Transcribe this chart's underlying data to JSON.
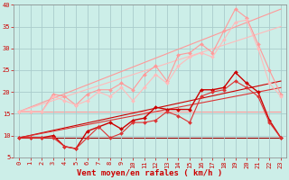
{
  "bg_color": "#cceee8",
  "grid_color": "#aacccc",
  "xlabel": "Vent moyen/en rafales ( km/h )",
  "xlim": [
    -0.5,
    23.5
  ],
  "ylim": [
    5,
    40
  ],
  "yticks": [
    5,
    10,
    15,
    20,
    25,
    30,
    35,
    40
  ],
  "xticks": [
    0,
    1,
    2,
    3,
    4,
    5,
    6,
    7,
    8,
    9,
    10,
    11,
    12,
    13,
    14,
    15,
    16,
    17,
    18,
    19,
    20,
    21,
    22,
    23
  ],
  "series": [
    {
      "x": [
        0,
        1,
        2,
        3,
        4,
        5,
        6,
        7,
        8,
        9,
        10,
        11,
        12,
        13,
        14,
        15,
        16,
        17,
        18,
        19,
        20,
        21,
        22,
        23
      ],
      "y": [
        15.5,
        15.5,
        15.5,
        19.5,
        19.0,
        17.0,
        19.5,
        20.5,
        20.5,
        22.0,
        20.5,
        24.0,
        26.0,
        22.5,
        28.5,
        29.0,
        31.0,
        29.0,
        34.0,
        39.0,
        37.0,
        31.0,
        25.0,
        19.5
      ],
      "color": "#ff9999",
      "marker": "D",
      "markersize": 2.0,
      "linewidth": 0.8,
      "zorder": 3
    },
    {
      "x": [
        0,
        1,
        2,
        3,
        4,
        5,
        6,
        7,
        8,
        9,
        10,
        11,
        12,
        13,
        14,
        15,
        16,
        17,
        18,
        19,
        20,
        21,
        22,
        23
      ],
      "y": [
        15.5,
        15.5,
        15.5,
        19.0,
        18.0,
        17.0,
        18.0,
        20.0,
        19.0,
        21.0,
        18.0,
        21.0,
        24.0,
        22.0,
        26.0,
        28.0,
        29.0,
        28.0,
        32.0,
        36.0,
        36.5,
        30.0,
        22.0,
        19.0
      ],
      "color": "#ffbbbb",
      "marker": "D",
      "markersize": 2.0,
      "linewidth": 0.8,
      "zorder": 3
    },
    {
      "x": [
        0,
        23
      ],
      "y": [
        15.5,
        39.0
      ],
      "color": "#ff9999",
      "marker": null,
      "linewidth": 0.8,
      "zorder": 2
    },
    {
      "x": [
        0,
        23
      ],
      "y": [
        15.5,
        35.0
      ],
      "color": "#ffbbbb",
      "marker": null,
      "linewidth": 0.8,
      "zorder": 2
    },
    {
      "x": [
        0,
        1,
        2,
        3,
        4,
        5,
        6,
        7,
        8,
        9,
        10,
        11,
        12,
        13,
        14,
        15,
        16,
        17,
        18,
        19,
        20,
        21,
        22,
        23
      ],
      "y": [
        9.5,
        9.5,
        9.5,
        10.0,
        7.5,
        7.0,
        11.0,
        12.0,
        13.0,
        11.5,
        13.5,
        14.0,
        16.5,
        16.0,
        16.0,
        16.0,
        20.5,
        20.5,
        21.0,
        24.5,
        22.0,
        20.0,
        13.5,
        9.5
      ],
      "color": "#cc0000",
      "marker": "D",
      "markersize": 2.0,
      "linewidth": 1.0,
      "zorder": 4
    },
    {
      "x": [
        0,
        1,
        2,
        3,
        4,
        5,
        6,
        7,
        8,
        9,
        10,
        11,
        12,
        13,
        14,
        15,
        16,
        17,
        18,
        19,
        20,
        21,
        22,
        23
      ],
      "y": [
        9.5,
        9.5,
        9.5,
        9.5,
        7.5,
        7.0,
        9.5,
        12.0,
        9.5,
        10.5,
        13.0,
        13.0,
        13.5,
        15.5,
        14.5,
        13.0,
        19.0,
        20.0,
        20.5,
        22.5,
        21.0,
        19.0,
        13.0,
        9.5
      ],
      "color": "#dd3333",
      "marker": "D",
      "markersize": 2.0,
      "linewidth": 0.8,
      "zorder": 4
    },
    {
      "x": [
        0,
        23
      ],
      "y": [
        9.5,
        22.5
      ],
      "color": "#cc0000",
      "marker": null,
      "linewidth": 0.8,
      "zorder": 2
    },
    {
      "x": [
        0,
        23
      ],
      "y": [
        9.5,
        21.0
      ],
      "color": "#dd3333",
      "marker": null,
      "linewidth": 0.8,
      "zorder": 2
    },
    {
      "x": [
        0,
        23
      ],
      "y": [
        15.5,
        15.5
      ],
      "color": "#ff9999",
      "marker": null,
      "linewidth": 0.8,
      "zorder": 1
    },
    {
      "x": [
        0,
        23
      ],
      "y": [
        9.5,
        9.5
      ],
      "color": "#990000",
      "marker": null,
      "linewidth": 0.8,
      "zorder": 1
    }
  ],
  "tick_label_fontsize": 5.0,
  "xlabel_fontsize": 6.5,
  "xlabel_color": "#cc0000",
  "tick_label_color": "#cc0000",
  "axis_color": "#888888"
}
